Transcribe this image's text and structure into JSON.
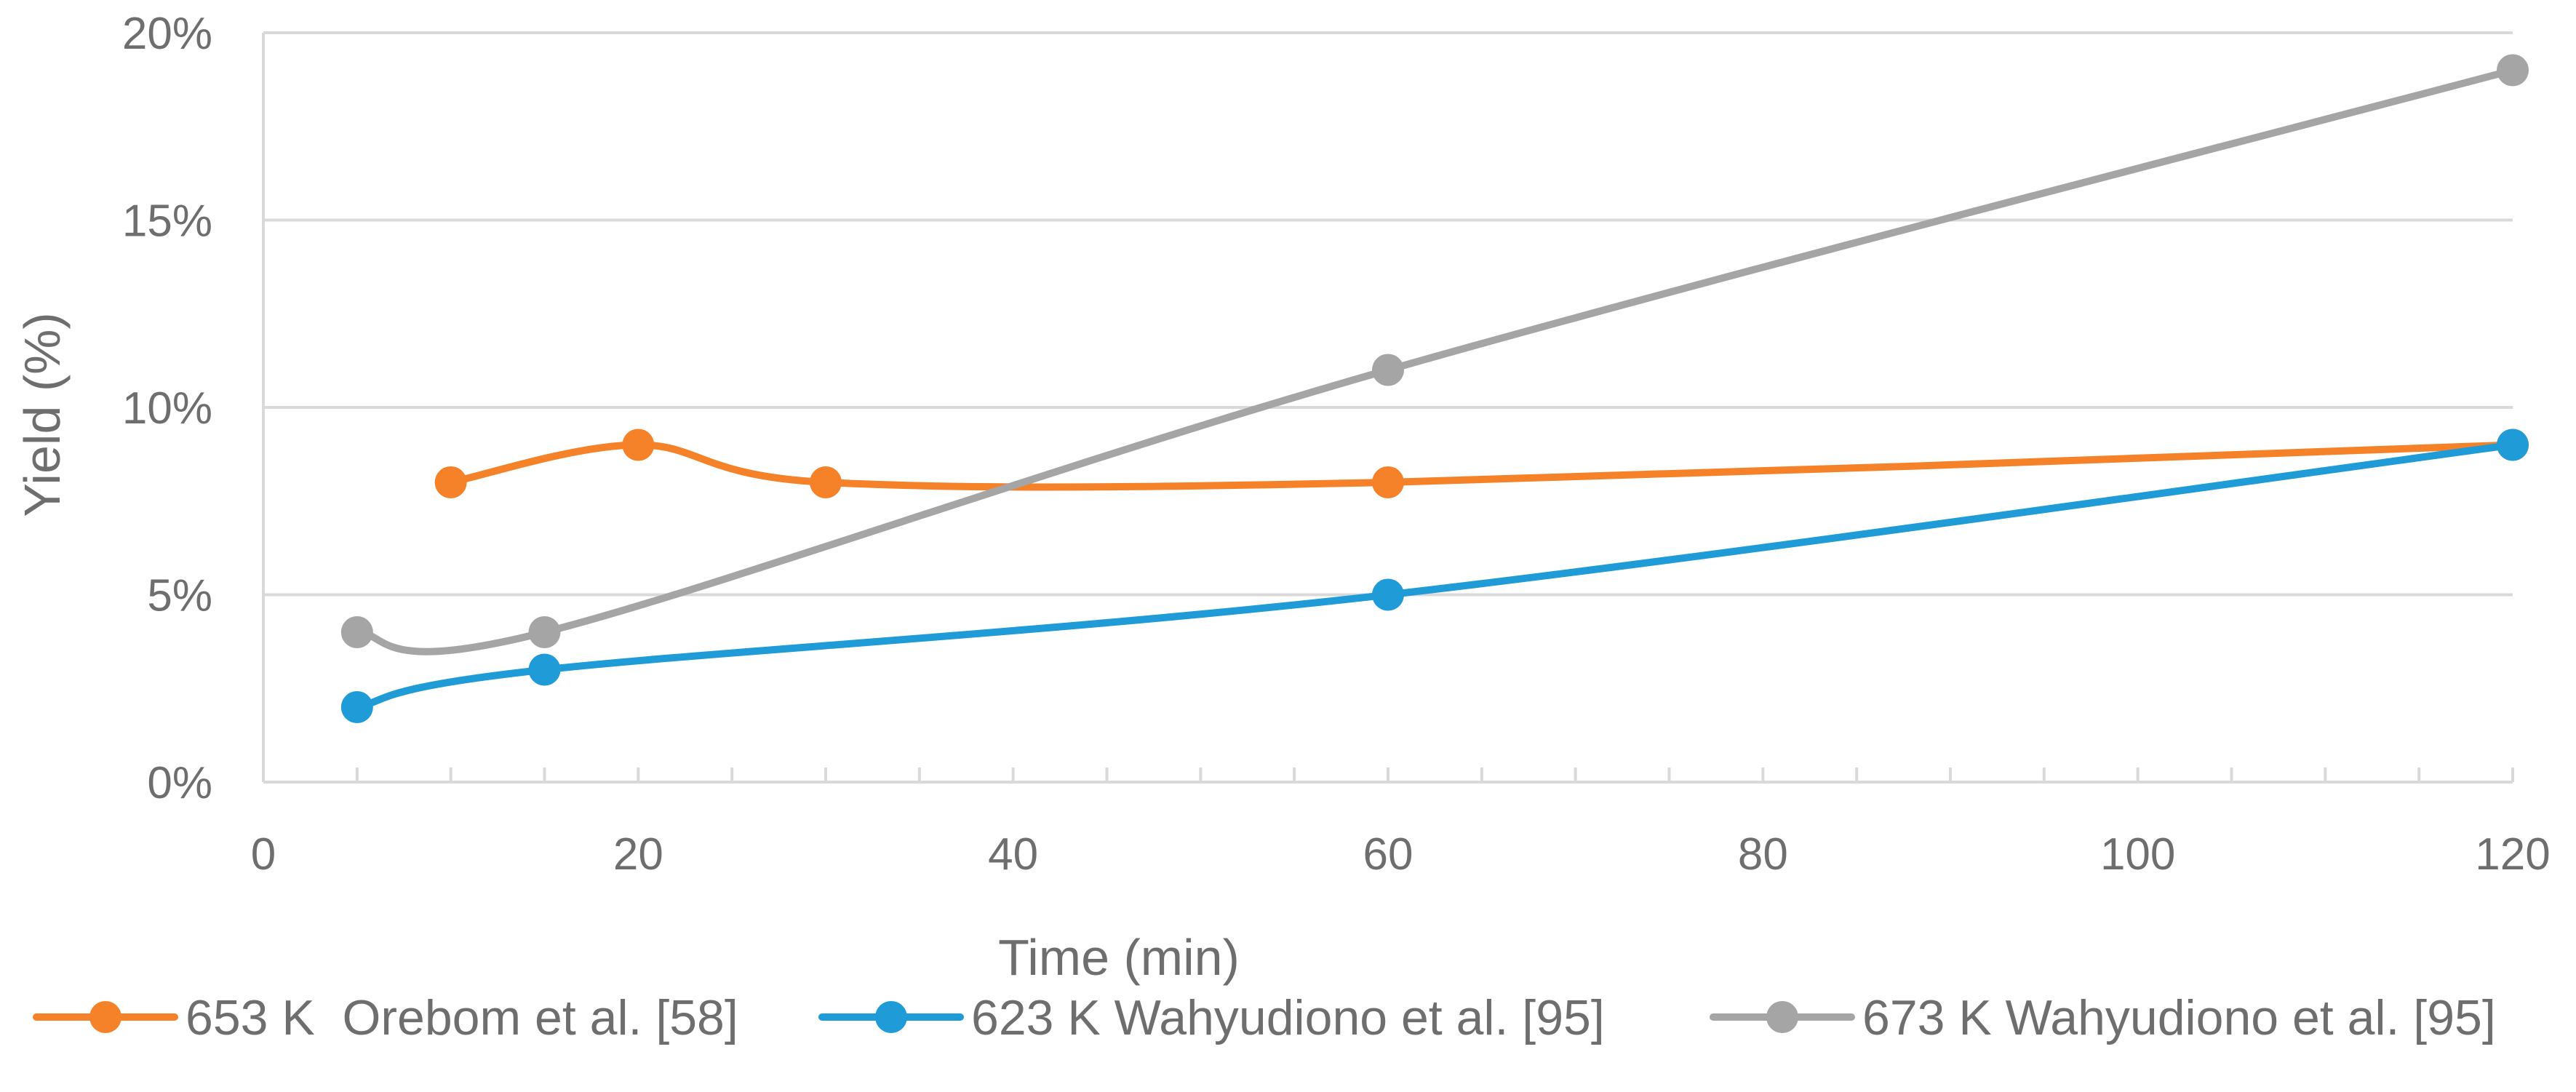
{
  "chart_data": {
    "type": "line",
    "smooth": true,
    "xlabel": "Time (min)",
    "ylabel": "Yield (%)",
    "xlim": [
      0,
      120
    ],
    "ylim": [
      0,
      20
    ],
    "x_ticks": [
      0,
      20,
      40,
      60,
      80,
      100,
      120
    ],
    "y_ticks": [
      0,
      5,
      10,
      15,
      20
    ],
    "y_tick_labels": [
      "0%",
      "5%",
      "10%",
      "15%",
      "20%"
    ],
    "grid": "horizontal",
    "legend_position": "bottom",
    "series": [
      {
        "name": "653 K  Orebom et al. [58]",
        "color": "#f58228",
        "points": [
          [
            10,
            8
          ],
          [
            20,
            9
          ],
          [
            30,
            8
          ],
          [
            60,
            8
          ],
          [
            120,
            9
          ]
        ]
      },
      {
        "name": "623 K Wahyudiono et al. [95]",
        "color": "#1f9bd7",
        "points": [
          [
            5,
            2
          ],
          [
            15,
            3
          ],
          [
            60,
            5
          ],
          [
            120,
            9
          ]
        ]
      },
      {
        "name": "673 K Wahyudiono et al. [95]",
        "color": "#a5a5a5",
        "points": [
          [
            5,
            4
          ],
          [
            15,
            4
          ],
          [
            60,
            11
          ],
          [
            120,
            19
          ]
        ]
      }
    ]
  }
}
